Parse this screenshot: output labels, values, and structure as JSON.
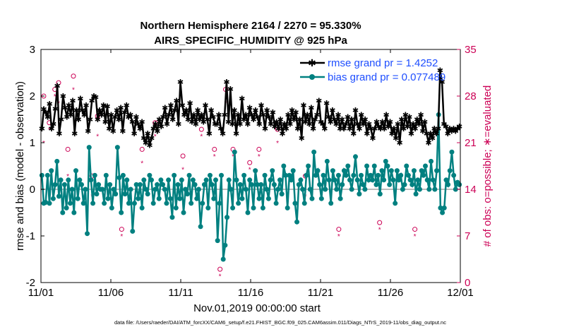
{
  "chart_data": {
    "type": "line",
    "title": "Northern Hemisphere 2164 / 2270 = 95.330%",
    "subtitle": "AIRS_SPECIFIC_HUMIDITY @ 925 hPa",
    "xlabel": "Nov.01,2019 00:00:00 start",
    "ylabel": "rmse and bias (model - observation)",
    "ylabel_right": "# of obs: o=possible; ∗=evaluated",
    "xlim": [
      0,
      30
    ],
    "ylim": [
      -2,
      3
    ],
    "ylim_right": [
      0,
      35
    ],
    "x_ticks": [
      {
        "value": 0,
        "label": "11/01"
      },
      {
        "value": 5,
        "label": "11/06"
      },
      {
        "value": 10,
        "label": "11/11"
      },
      {
        "value": 15,
        "label": "11/16"
      },
      {
        "value": 20,
        "label": "11/21"
      },
      {
        "value": 25,
        "label": "11/26"
      },
      {
        "value": 30,
        "label": "12/01"
      }
    ],
    "y_ticks": [
      -2,
      -1,
      0,
      1,
      2,
      3
    ],
    "y_ticks_right": [
      0,
      7,
      14,
      21,
      28,
      35
    ],
    "legend": [
      {
        "label": "rmse grand pr = 1.4252",
        "color": "#000000",
        "marker": "asterisk"
      },
      {
        "label": "bias grand pr = 0.077489",
        "color": "#008080",
        "marker": "circle"
      }
    ],
    "zero_line": 0,
    "series": [
      {
        "name": "rmse",
        "color": "#000000",
        "values": [
          1.3,
          1.72,
          1.65,
          1.55,
          1.83,
          1.3,
          1.4,
          1.73,
          2.22,
          1.2,
          1.5,
          2.0,
          1.75,
          1.55,
          1.8,
          1.6,
          1.9,
          1.2,
          1.7,
          1.5,
          1.95,
          1.7,
          1.6,
          1.8,
          1.25,
          1.5,
          1.9,
          2.0,
          1.98,
          1.5,
          1.7,
          1.6,
          1.8,
          1.45,
          1.78,
          1.3,
          1.6,
          1.25,
          1.55,
          1.7,
          1.5,
          1.75,
          1.25,
          1.65,
          1.8,
          1.55,
          1.6,
          1.45,
          1.2,
          1.55,
          1.4,
          1.3,
          1.45,
          1.1,
          1.0,
          1.2,
          0.95,
          1.1,
          1.3,
          1.4,
          1.25,
          1.5,
          1.35,
          1.55,
          1.75,
          1.4,
          1.6,
          1.8,
          1.5,
          1.7,
          1.9,
          1.4,
          2.3,
          1.8,
          1.6,
          1.7,
          1.5,
          1.85,
          1.45,
          1.6,
          1.4,
          1.7,
          1.5,
          1.6,
          1.45,
          1.8,
          1.5,
          1.2,
          1.7,
          1.55,
          1.4,
          1.4,
          1.6,
          1.3,
          1.2,
          1.6,
          2.3,
          1.45,
          2.15,
          1.4,
          1.7,
          1.2,
          1.6,
          1.4,
          1.95,
          1.5,
          1.6,
          1.4,
          1.75,
          1.6,
          1.5,
          1.7,
          1.55,
          1.4,
          1.8,
          1.6,
          1.3,
          1.7,
          1.55,
          1.4,
          1.65,
          1.35,
          1.45,
          1.3,
          1.5,
          1.2,
          1.4,
          1.3,
          1.6,
          1.4,
          1.7,
          1.5,
          1.65,
          1.3,
          1.5,
          1.1,
          1.8,
          1.45,
          1.6,
          1.4,
          1.75,
          1.3,
          1.5,
          1.6,
          1.9,
          1.45,
          1.4,
          1.3,
          1.85,
          1.55,
          1.45,
          1.7,
          1.5,
          1.4,
          1.6,
          1.3,
          1.5,
          1.3,
          1.4,
          1.55,
          1.3,
          1.5,
          1.2,
          1.7,
          1.4,
          1.3,
          1.6,
          1.4,
          1.5,
          1.2,
          1.4,
          1.3,
          1.1,
          1.3,
          1.45,
          1.35,
          1.3,
          1.45,
          1.3,
          1.6,
          1.35,
          1.45,
          1.2,
          1.3,
          1.1,
          1.4,
          1.0,
          1.5,
          1.3,
          1.6,
          1.35,
          1.55,
          1.2,
          1.4,
          1.3,
          1.5,
          1.4,
          1.6,
          1.25,
          1.45,
          1.2,
          1.0,
          1.2,
          1.1,
          1.3,
          1.2,
          1.3,
          2.55,
          2.3,
          1.4,
          1.35,
          1.2,
          1.3,
          1.25,
          1.3,
          1.25,
          1.3,
          1.35
        ]
      },
      {
        "name": "bias",
        "color": "#008080",
        "values": [
          0.3,
          -0.3,
          -0.28,
          0.3,
          -0.3,
          0.4,
          -0.2,
          0.1,
          0.6,
          -0.15,
          0.2,
          -0.5,
          0.1,
          -0.4,
          0.2,
          -0.3,
          0.0,
          -0.5,
          0.4,
          -0.2,
          0.2,
          0.1,
          -0.3,
          0.0,
          -0.95,
          0.9,
          0.2,
          -0.3,
          0.3,
          -0.1,
          0.1,
          0.0,
          0.0,
          -0.3,
          0.3,
          -0.2,
          0.1,
          -0.4,
          0.0,
          -0.1,
          0.9,
          0.25,
          -0.5,
          0.3,
          -0.1,
          0.2,
          -0.3,
          0.0,
          -0.9,
          -0.3,
          0.1,
          -0.2,
          0.1,
          -0.4,
          0.2,
          0.0,
          -0.1,
          0.3,
          0.2,
          -0.3,
          0.0,
          0.1,
          -0.2,
          0.2,
          0.1,
          0.0,
          -0.3,
          0.2,
          -0.2,
          -0.6,
          0.3,
          -0.4,
          0.1,
          -0.2,
          0.2,
          -0.5,
          0.0,
          -0.1,
          0.3,
          -0.3,
          0.2,
          0.1,
          -0.2,
          0.0,
          -0.8,
          -0.3,
          0.1,
          0.2,
          -0.4,
          0.3,
          0.1,
          -0.2,
          0.2,
          -1.1,
          -0.3,
          0.3,
          -1.5,
          -1.2,
          -0.6,
          0.2,
          0.0,
          -0.4,
          0.8,
          0.2,
          -0.3,
          0.1,
          -0.2,
          0.3,
          0.0,
          -0.5,
          0.2,
          0.1,
          -0.4,
          0.4,
          0.1,
          -0.2,
          0.1,
          -0.4,
          0.3,
          0.0,
          -0.2,
          0.2,
          0.4,
          0.1,
          -0.3,
          0.0,
          0.2,
          -0.1,
          0.5,
          0.3,
          -0.4,
          0.3,
          0.2,
          0.4,
          -0.3,
          -0.7,
          0.1,
          0.2,
          0.0,
          -0.3,
          0.3,
          0.5,
          0.0,
          -0.2,
          0.8,
          0.3,
          0.4,
          0.1,
          -0.2,
          0.3,
          0.0,
          0.6,
          0.2,
          -0.3,
          0.4,
          0.2,
          0.0,
          0.3,
          -0.2,
          0.1,
          0.4,
          0.3,
          0.5,
          0.2,
          0.0,
          0.3,
          0.7,
          0.2,
          -0.1,
          0.3,
          0.1,
          0.0,
          0.5,
          0.2,
          0.3,
          0.2,
          0.5,
          0.1,
          0.3,
          -0.1,
          0.4,
          0.2,
          0.6,
          0.5,
          0.1,
          0.4,
          0.2,
          -0.3,
          0.4,
          0.2,
          0.3,
          0.0,
          0.1,
          0.5,
          0.3,
          0.2,
          0.1,
          0.4,
          -0.1,
          0.2,
          0.0,
          0.4,
          0.3,
          0.5,
          0.2,
          0.0,
          0.6,
          0.2,
          0.0,
          0.4,
          1.6,
          -0.4,
          -0.5,
          -0.4,
          0.2,
          0.1,
          0.4,
          0.8,
          0.3,
          0.0,
          0.15,
          0.1
        ]
      },
      {
        "name": "possible obs",
        "color": "#cc0055",
        "marker": "circle",
        "axis": "right",
        "values": [
          null,
          28,
          null,
          null,
          24,
          null,
          null,
          29,
          null,
          30,
          null,
          null,
          null,
          null,
          20,
          null,
          null,
          31,
          null,
          null,
          null,
          null,
          null,
          null,
          null,
          null,
          null,
          16,
          null,
          null,
          25,
          null,
          null,
          null,
          null,
          null,
          null,
          null,
          null,
          null,
          null,
          null,
          null,
          8,
          null,
          null,
          null,
          null,
          null,
          null,
          null,
          null,
          null,
          null,
          20,
          null,
          null,
          null,
          null,
          null,
          null,
          24,
          null,
          null,
          null,
          null,
          null,
          null,
          null,
          null,
          null,
          null,
          null,
          null,
          null,
          null,
          19,
          null,
          null,
          null,
          null,
          null,
          null,
          null,
          null,
          null,
          23,
          null,
          null,
          null,
          null,
          null,
          null,
          20,
          null,
          null,
          2,
          null,
          null,
          29,
          null,
          null,
          null,
          20,
          null,
          null,
          null,
          null,
          null,
          null,
          null,
          null,
          18,
          null,
          null,
          null,
          null,
          20,
          null,
          null,
          null,
          null,
          null,
          null,
          null,
          null,
          null,
          23,
          null,
          null,
          null,
          null,
          null,
          null,
          null,
          null,
          null,
          null,
          null,
          null,
          null,
          null,
          16,
          null,
          null,
          null,
          null,
          null,
          null,
          null,
          null,
          null,
          null,
          null,
          null,
          null,
          null,
          null,
          null,
          null,
          8,
          null,
          null,
          null,
          null,
          null,
          null,
          null,
          null,
          null,
          null,
          null,
          null,
          null,
          null,
          null,
          null,
          null,
          null,
          null,
          null,
          null,
          9,
          null,
          null,
          null,
          null,
          null,
          null,
          null,
          null,
          null,
          null,
          null,
          null,
          null,
          null,
          null,
          null,
          null,
          null,
          8,
          null,
          null,
          null,
          null,
          null,
          null,
          null,
          null,
          null,
          null,
          null,
          null,
          null,
          null,
          null,
          null,
          null,
          null,
          null,
          null,
          null,
          null,
          null,
          null
        ]
      },
      {
        "name": "evaluated obs",
        "color": "#cc0055",
        "marker": "asterisk",
        "axis": "right",
        "values": [
          null,
          21,
          null,
          null,
          23,
          null,
          null,
          28,
          null,
          27,
          null,
          null,
          null,
          null,
          16,
          null,
          null,
          29,
          null,
          null,
          null,
          null,
          null,
          null,
          null,
          null,
          null,
          13,
          null,
          null,
          22,
          null,
          null,
          null,
          null,
          null,
          null,
          null,
          null,
          null,
          null,
          null,
          null,
          7,
          null,
          null,
          null,
          null,
          null,
          null,
          null,
          null,
          null,
          null,
          18,
          null,
          null,
          null,
          null,
          null,
          null,
          22,
          null,
          null,
          null,
          null,
          null,
          null,
          null,
          null,
          null,
          null,
          null,
          null,
          null,
          null,
          17,
          null,
          null,
          null,
          null,
          null,
          null,
          null,
          null,
          null,
          22,
          null,
          null,
          null,
          null,
          null,
          null,
          19,
          null,
          null,
          1,
          null,
          null,
          27,
          null,
          null,
          null,
          19,
          null,
          null,
          null,
          null,
          null,
          null,
          null,
          null,
          17,
          null,
          null,
          null,
          null,
          19,
          null,
          null,
          null,
          null,
          null,
          null,
          null,
          null,
          null,
          21,
          null,
          null,
          null,
          null,
          null,
          null,
          null,
          null,
          null,
          null,
          null,
          null,
          null,
          null,
          13,
          null,
          null,
          null,
          null,
          null,
          null,
          null,
          null,
          null,
          null,
          null,
          null,
          null,
          null,
          null,
          null,
          null,
          7,
          null,
          null,
          null,
          null,
          null,
          null,
          null,
          null,
          null,
          null,
          null,
          null,
          null,
          null,
          null,
          null,
          null,
          null,
          null,
          null,
          null,
          8,
          null,
          null,
          null,
          null,
          null,
          null,
          null,
          null,
          null,
          null,
          null,
          null,
          null,
          null,
          null,
          null,
          null,
          null,
          7,
          null,
          null,
          null,
          null,
          null,
          null,
          null,
          null,
          null,
          null,
          null,
          null,
          null,
          null,
          null,
          null,
          null,
          null,
          null,
          null,
          null,
          null,
          null,
          null
        ]
      }
    ]
  },
  "footer": "data file: /Users/raeder/DAI/ATM_forcXX/CAM6_setup/f.e21.FHIST_BGC.f09_025.CAM6assim.011/Diags_NTrS_2019-11/obs_diag_output.nc",
  "colors": {
    "axis": "#000000",
    "rmse": "#000000",
    "bias": "#008080",
    "obs": "#cc0055",
    "legend_text": "#1f4fff",
    "zero_line": "#bbbbbb"
  }
}
